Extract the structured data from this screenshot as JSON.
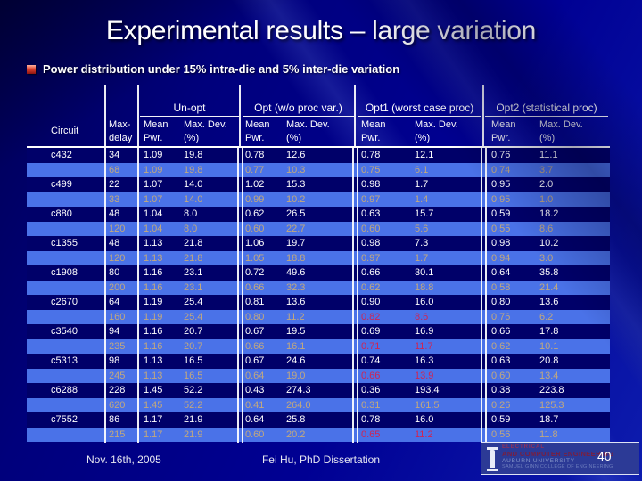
{
  "slide": {
    "title": "Experimental results – large variation",
    "bullet": "Power distribution under 15% intra-die and 5% inter-die variation"
  },
  "table": {
    "headers": {
      "circuit": "Circuit",
      "max_delay_l1": "Max-",
      "max_delay_l2": "delay",
      "groups": [
        "Un-opt",
        "Opt (w/o proc var.)",
        "Opt1 (worst case proc)",
        "Opt2 (statistical proc)"
      ],
      "mean_l1": "Mean",
      "mean_l2": "Pwr.",
      "dev_l1": "Max. Dev.",
      "dev_l2": "(%)"
    },
    "rows": [
      {
        "circuit": "c432",
        "cells": [
          "34",
          "1.09",
          "19.8",
          "0.78",
          "12.6",
          "0.78",
          "12.1",
          "0.76",
          "11.1"
        ],
        "red": false
      },
      {
        "circuit": "",
        "cells": [
          "68",
          "1.09",
          "19.8",
          "0.77",
          "10.3",
          "0.75",
          "6.1",
          "0.74",
          "3.7"
        ],
        "red": false
      },
      {
        "circuit": "c499",
        "cells": [
          "22",
          "1.07",
          "14.0",
          "1.02",
          "15.3",
          "0.98",
          "1.7",
          "0.95",
          "2.0"
        ],
        "red": false
      },
      {
        "circuit": "",
        "cells": [
          "33",
          "1.07",
          "14.0",
          "0.99",
          "10.2",
          "0.97",
          "1.4",
          "0.95",
          "1.0"
        ],
        "red": false
      },
      {
        "circuit": "c880",
        "cells": [
          "48",
          "1.04",
          "8.0",
          "0.62",
          "26.5",
          "0.63",
          "15.7",
          "0.59",
          "18.2"
        ],
        "red": false
      },
      {
        "circuit": "",
        "cells": [
          "120",
          "1.04",
          "8.0",
          "0.60",
          "22.7",
          "0.60",
          "5.6",
          "0.55",
          "8.6"
        ],
        "red": false
      },
      {
        "circuit": "c1355",
        "cells": [
          "48",
          "1.13",
          "21.8",
          "1.06",
          "19.7",
          "0.98",
          "7.3",
          "0.98",
          "10.2"
        ],
        "red": false
      },
      {
        "circuit": "",
        "cells": [
          "120",
          "1.13",
          "21.8",
          "1.05",
          "18.8",
          "0.97",
          "1.7",
          "0.94",
          "3.0"
        ],
        "red": false
      },
      {
        "circuit": "c1908",
        "cells": [
          "80",
          "1.16",
          "23.1",
          "0.72",
          "49.6",
          "0.66",
          "30.1",
          "0.64",
          "35.8"
        ],
        "red": false
      },
      {
        "circuit": "",
        "cells": [
          "200",
          "1.16",
          "23.1",
          "0.66",
          "32.3",
          "0.62",
          "18.8",
          "0.58",
          "21.4"
        ],
        "red": false
      },
      {
        "circuit": "c2670",
        "cells": [
          "64",
          "1.19",
          "25.4",
          "0.81",
          "13.6",
          "0.90",
          "16.0",
          "0.80",
          "13.6"
        ],
        "red": false
      },
      {
        "circuit": "",
        "cells": [
          "160",
          "1.19",
          "25.4",
          "0.80",
          "11.2",
          "0.82",
          "8.6",
          "0.76",
          "6.2"
        ],
        "red": true
      },
      {
        "circuit": "c3540",
        "cells": [
          "94",
          "1.16",
          "20.7",
          "0.67",
          "19.5",
          "0.69",
          "16.9",
          "0.66",
          "17.8"
        ],
        "red": false
      },
      {
        "circuit": "",
        "cells": [
          "235",
          "1.16",
          "20.7",
          "0.66",
          "16.1",
          "0.71",
          "11.7",
          "0.62",
          "10.1"
        ],
        "red": true
      },
      {
        "circuit": "c5313",
        "cells": [
          "98",
          "1.13",
          "16.5",
          "0.67",
          "24.6",
          "0.74",
          "16.3",
          "0.63",
          "20.8"
        ],
        "red": false
      },
      {
        "circuit": "",
        "cells": [
          "245",
          "1.13",
          "16.5",
          "0.64",
          "19.0",
          "0.66",
          "13.9",
          "0.60",
          "13.4"
        ],
        "red": true
      },
      {
        "circuit": "c6288",
        "cells": [
          "228",
          "1.45",
          "52.2",
          "0.43",
          "274.3",
          "0.36",
          "193.4",
          "0.38",
          "223.8"
        ],
        "red": false
      },
      {
        "circuit": "",
        "cells": [
          "620",
          "1.45",
          "52.2",
          "0.41",
          "264.0",
          "0.31",
          "161.5",
          "0.26",
          "125.3"
        ],
        "red": false
      },
      {
        "circuit": "c7552",
        "cells": [
          "86",
          "1.17",
          "21.9",
          "0.64",
          "25.8",
          "0.78",
          "16.0",
          "0.59",
          "18.7"
        ],
        "red": false
      },
      {
        "circuit": "",
        "cells": [
          "215",
          "1.17",
          "21.9",
          "0.60",
          "20.2",
          "0.65",
          "11.2",
          "0.56",
          "11.8"
        ],
        "red": true
      }
    ]
  },
  "footer": {
    "date": "Nov. 16th, 2005",
    "center": "Fei Hu, PhD Dissertation",
    "page": "40"
  },
  "logo": {
    "line1": "ELECTRICAL",
    "line2": "AND COMPUTER ENGINEERING",
    "line3": "AUBURN UNIVERSITY",
    "line4": "SAMUEL GINN COLLEGE OF ENGINEERING"
  },
  "colors": {
    "row_dark": "#000069",
    "row_blue": "#4a72e8",
    "text_tan": "#c2a87e",
    "text_red": "#d02452",
    "bullet_red": "#e04330",
    "logo_maroon": "#7a1f3f"
  }
}
